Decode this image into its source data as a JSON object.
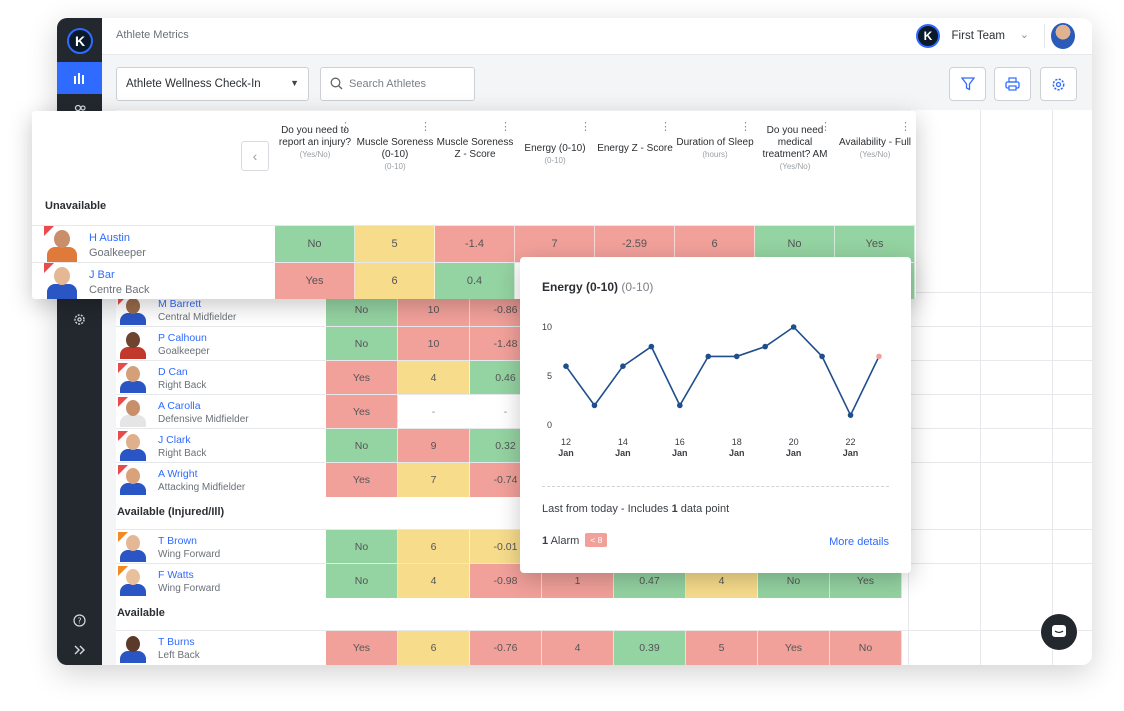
{
  "app": {
    "title": "Athlete Metrics",
    "team": "First Team"
  },
  "toolbar": {
    "form_select": "Athlete Wellness Check-In",
    "search_placeholder": "Search Athletes"
  },
  "columns": [
    {
      "title": "Do you need to report an injury?",
      "unit": "(Yes/No)"
    },
    {
      "title": "Muscle Soreness (0-10)",
      "unit": "(0-10)"
    },
    {
      "title": "Muscle Soreness Z - Score",
      "unit": ""
    },
    {
      "title": "Energy (0-10)",
      "unit": "(0-10)"
    },
    {
      "title": "Energy Z - Score",
      "unit": ""
    },
    {
      "title": "Duration of Sleep",
      "unit": "(hours)"
    },
    {
      "title": "Do you need medical treatment? AM",
      "unit": "(Yes/No)"
    },
    {
      "title": "Availability - Full",
      "unit": "(Yes/No)"
    }
  ],
  "groups": {
    "unavailable": "Unavailable",
    "injured": "Available (Injured/Ill)",
    "available": "Available"
  },
  "panel_rows": [
    {
      "name": "H Austin",
      "position": "Goalkeeper",
      "cells": [
        "No",
        "5",
        "-1.4",
        "7",
        "-2.59",
        "6",
        "No",
        "Yes"
      ]
    },
    {
      "name": "J Bar",
      "position": "Centre Back",
      "cells": [
        "Yes",
        "6",
        "0.4",
        "",
        "",
        "",
        "",
        ""
      ]
    }
  ],
  "grid_rows": [
    {
      "name": "M Barrett",
      "position": "Central Midfielder",
      "cells": [
        "No",
        "10",
        "-0.86"
      ]
    },
    {
      "name": "P Calhoun",
      "position": "Goalkeeper",
      "cells": [
        "No",
        "10",
        "-1.48"
      ]
    },
    {
      "name": "D Can",
      "position": "Right Back",
      "cells": [
        "Yes",
        "4",
        "0.46"
      ]
    },
    {
      "name": "A Carolla",
      "position": "Defensive Midfielder",
      "cells": [
        "Yes",
        "-",
        "-"
      ]
    },
    {
      "name": "J Clark",
      "position": "Right Back",
      "cells": [
        "No",
        "9",
        "0.32"
      ]
    },
    {
      "name": "A Wright",
      "position": "Attacking Midfielder",
      "cells": [
        "Yes",
        "7",
        "-0.74"
      ]
    },
    {
      "name": "T Brown",
      "position": "Wing Forward",
      "cells": [
        "No",
        "6",
        "-0.01"
      ]
    },
    {
      "name": "F Watts",
      "position": "Wing Forward",
      "cells": [
        "No",
        "4",
        "-0.98",
        "1",
        "0.47",
        "4",
        "No",
        "Yes"
      ]
    },
    {
      "name": "T Burns",
      "position": "Left Back",
      "cells": [
        "Yes",
        "6",
        "-0.76",
        "4",
        "0.39",
        "5",
        "Yes",
        "No"
      ]
    }
  ],
  "popover": {
    "title": "Energy (0-10)",
    "unit": "(0-10)",
    "note_prefix": "Last from today - Includes ",
    "note_count": "1",
    "note_suffix": " data point",
    "alarm_count": "1",
    "alarm_label": "Alarm",
    "alarm_badge": "< 8",
    "more_details": "More details"
  },
  "chart_data": {
    "type": "line",
    "x": [
      12,
      13,
      14,
      15,
      16,
      17,
      18,
      19,
      20,
      21,
      22,
      23
    ],
    "values": [
      6,
      2,
      6,
      8,
      2,
      7,
      7,
      8,
      10,
      7,
      1,
      7
    ],
    "x_tick_values": [
      12,
      14,
      16,
      18,
      20,
      22
    ],
    "x_tick_days": [
      "12",
      "14",
      "16",
      "18",
      "20",
      "22"
    ],
    "x_tick_month": "Jan",
    "y_ticks": [
      "0",
      "5",
      "10"
    ],
    "ylim": [
      0,
      10
    ],
    "line_color": "#1f4e8c",
    "last_point_color": "#f2a09a"
  },
  "colors": {
    "accent": "#2f6bff",
    "green": "#94d3a2",
    "yellow": "#f7dc8c",
    "red": "#f2a09a"
  }
}
